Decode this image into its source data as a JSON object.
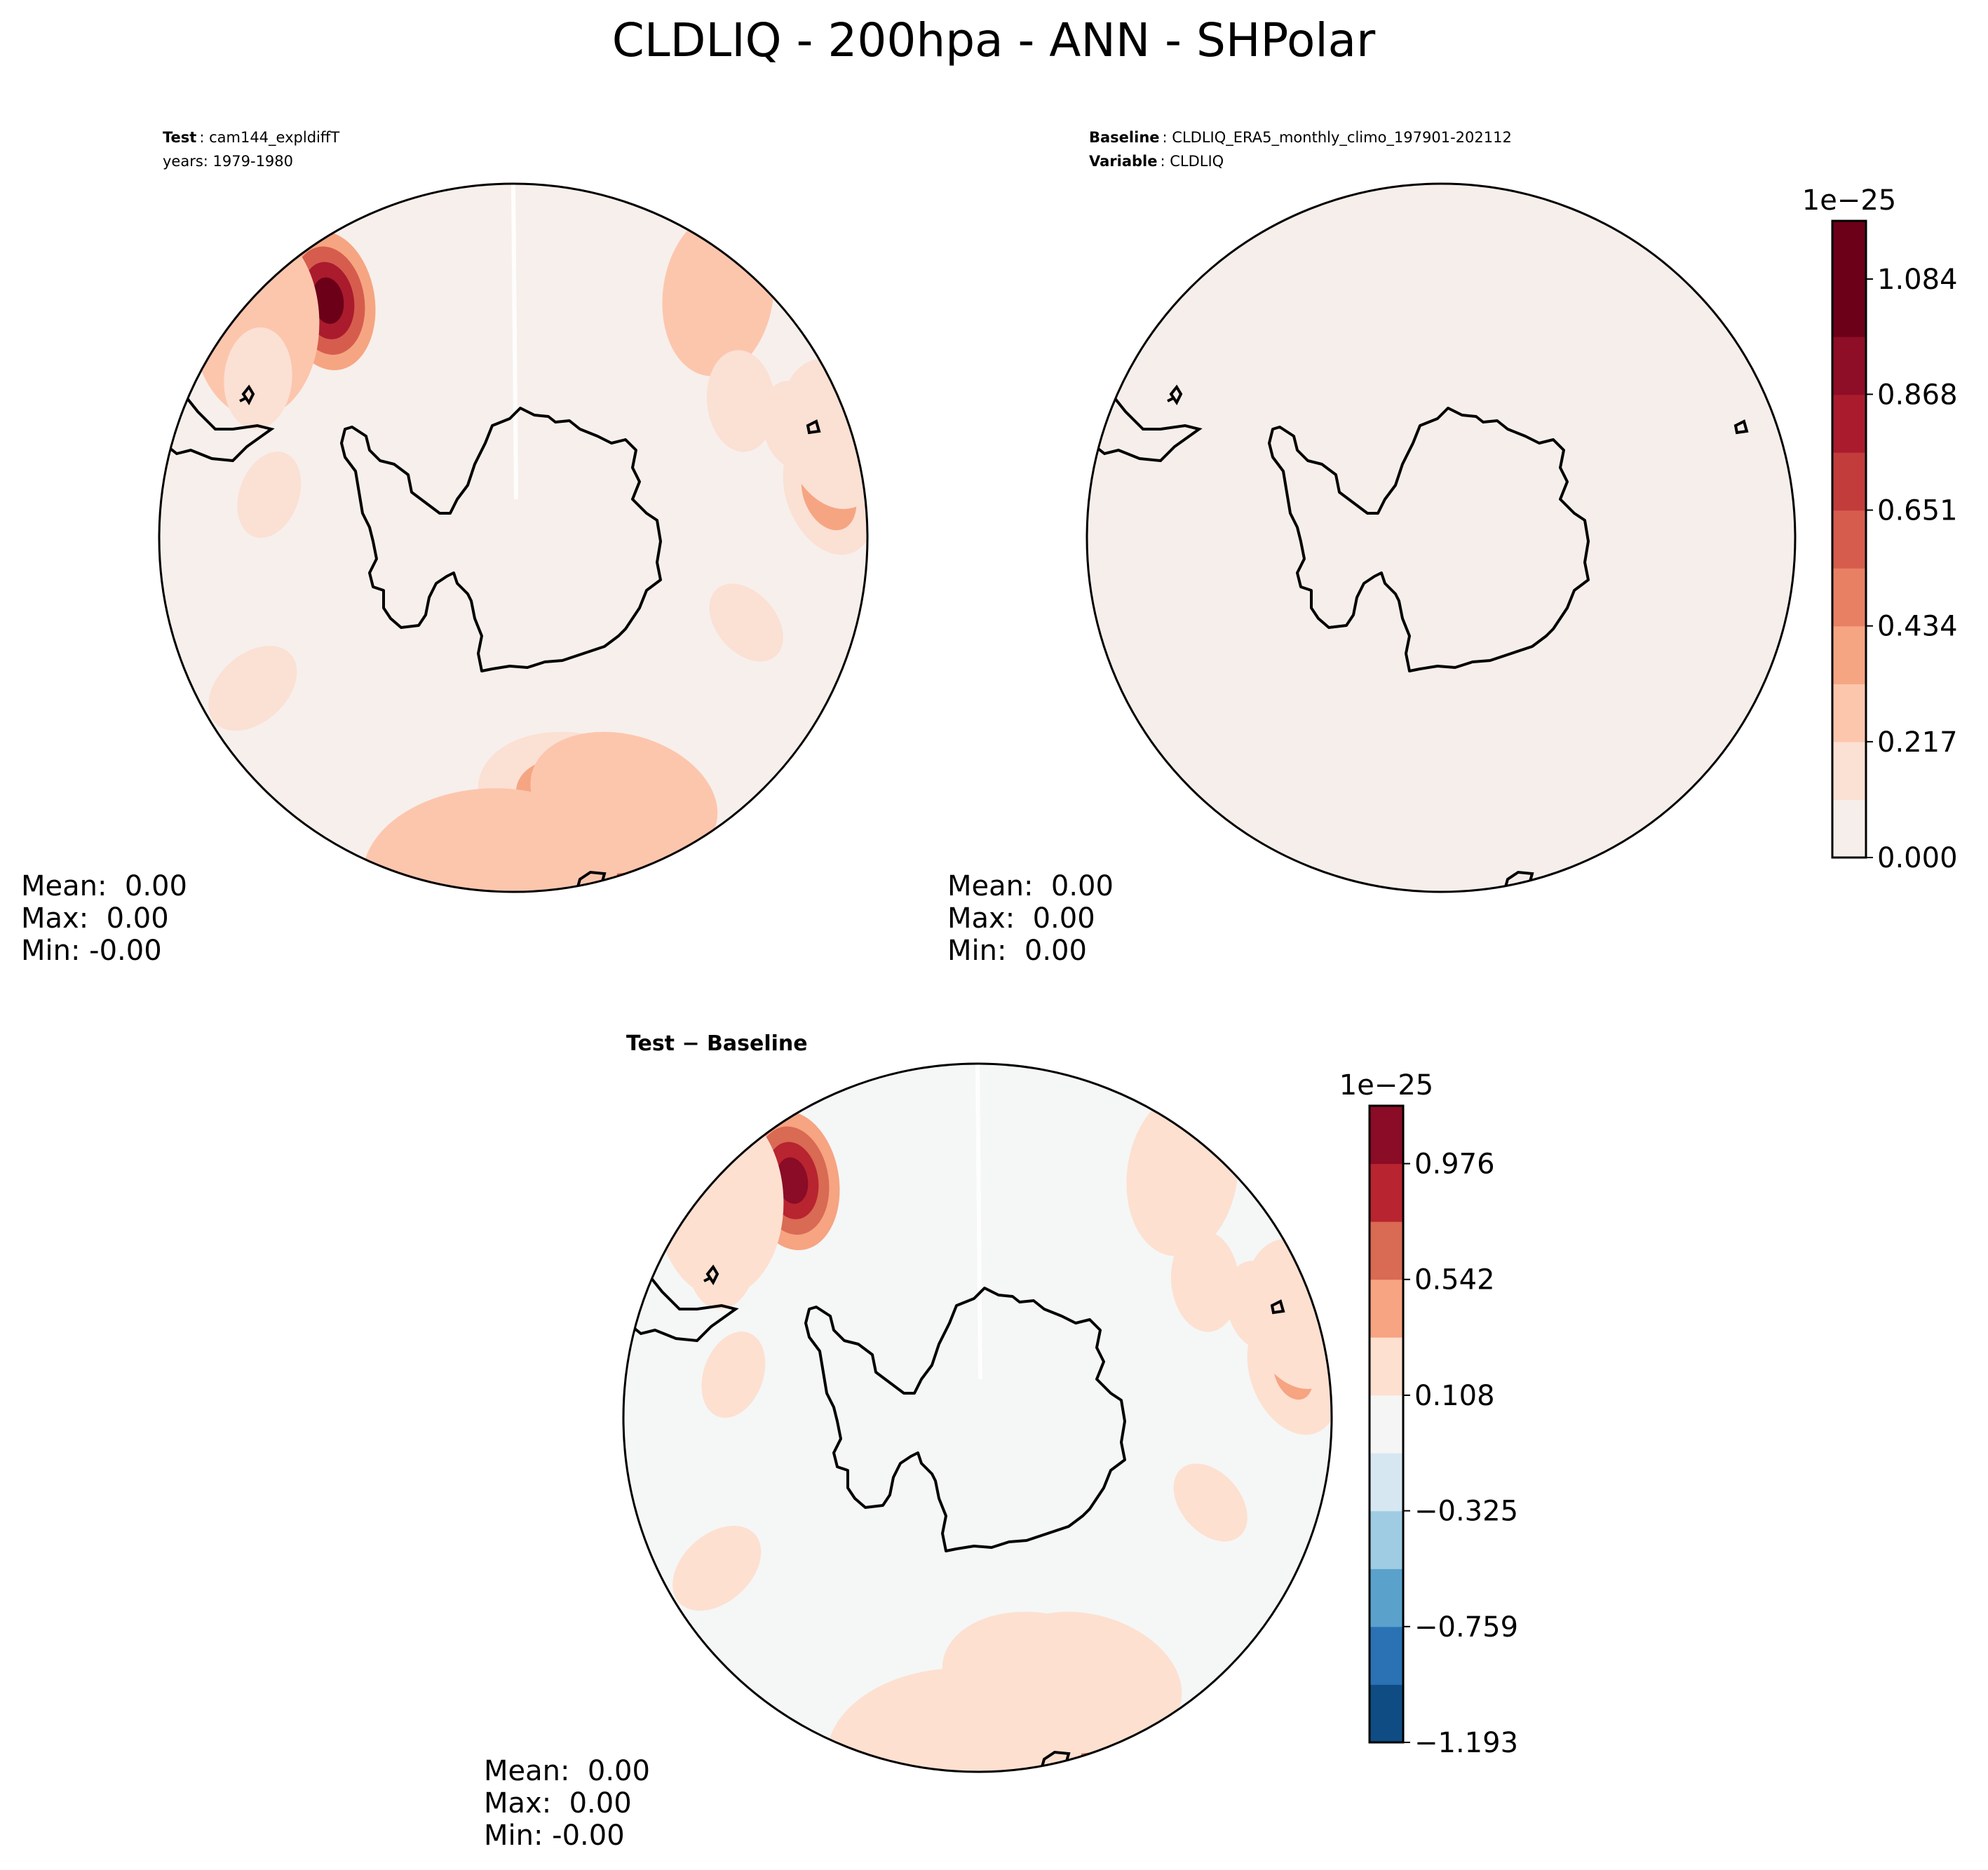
{
  "figure": {
    "title": "CLDLIQ - 200hpa - ANN - SHPolar"
  },
  "colors": {
    "seq": [
      "#f6eeea",
      "#fbe0d4",
      "#fcc6ad",
      "#f6a582",
      "#e88064",
      "#d65d4d",
      "#c23c3c",
      "#aa1b2e",
      "#8e0d27",
      "#6b0018"
    ],
    "div": [
      "#0f4c83",
      "#2a72b3",
      "#5aa2cc",
      "#9fcce2",
      "#d6e7f1",
      "#f5f5f5",
      "#fde0d0",
      "#f6a482",
      "#d96a53",
      "#b8242f",
      "#8a0c26"
    ],
    "ocean_test": "#f7efeb",
    "ocean_base": "#f6eeea",
    "ocean_diff": "#f5f6f6",
    "coast": "#000000"
  },
  "chart_data": [
    {
      "type": "heatmap",
      "panel": "test",
      "header": {
        "line1_bold": "Test",
        "line1_value": "cam144_expldiffT",
        "line2": "years: 1979-1980"
      },
      "stats": {
        "mean": "Mean:  0.00",
        "max": "Max:  0.00",
        "min": "Min: -0.00"
      },
      "hotspots": [
        {
          "lon": -142,
          "lat": -56,
          "level": 9,
          "r": 2.2
        },
        {
          "lon": -130,
          "lat": -52,
          "level": 2,
          "r": 3.0
        },
        {
          "lon": 8,
          "lat": -52,
          "level": 9,
          "r": 2.6
        },
        {
          "lon": 3,
          "lat": -55,
          "level": 7,
          "r": 2.2
        },
        {
          "lon": 1,
          "lat": -56,
          "level": 8,
          "r": 2.0
        },
        {
          "lon": 13,
          "lat": -60,
          "level": 3,
          "r": 3.0
        },
        {
          "lon": 17,
          "lat": -56,
          "level": 4,
          "r": 2.2
        },
        {
          "lon": -4,
          "lat": -52,
          "level": 2,
          "r": 4.0
        },
        {
          "lon": 23,
          "lat": -58,
          "level": 2,
          "r": 3.0
        },
        {
          "lon": 140,
          "lat": -54,
          "level": 2,
          "r": 2.6
        },
        {
          "lon": 98,
          "lat": -54,
          "level": 3,
          "r": 2.0
        },
        {
          "lon": 108,
          "lat": -52,
          "level": 1,
          "r": 2.4
        },
        {
          "lon": 121,
          "lat": -60,
          "level": 1,
          "r": 1.6
        },
        {
          "lon": -122,
          "lat": -56,
          "level": 1,
          "r": 1.6
        },
        {
          "lon": -100,
          "lat": -62,
          "level": 1,
          "r": 1.4
        },
        {
          "lon": -60,
          "lat": -56,
          "level": 1,
          "r": 1.6
        },
        {
          "lon": 70,
          "lat": -62,
          "level": 1,
          "r": 1.4
        },
        {
          "lon": 112,
          "lat": -56,
          "level": 1,
          "r": 1.4
        }
      ]
    },
    {
      "type": "heatmap",
      "panel": "baseline",
      "header": {
        "line1_bold": "Baseline",
        "line1_value": "CLDLIQ_ERA5_monthly_climo_197901-202112",
        "line2_bold": "Variable",
        "line2_value": "CLDLIQ"
      },
      "stats": {
        "mean": "Mean:  0.00",
        "max": "Max:  0.00",
        "min": "Min:  0.00"
      },
      "colorbar": {
        "exponent_label": "1e−25",
        "levels": 11,
        "ticks": [
          "0.000",
          "0.217",
          "0.434",
          "0.651",
          "0.868",
          "1.084"
        ],
        "tick_values": [
          0,
          0.217,
          0.434,
          0.651,
          0.868,
          1.084
        ],
        "range": [
          0,
          1.193
        ]
      },
      "hotspots": []
    },
    {
      "type": "heatmap",
      "panel": "difference",
      "header": {
        "label": "Test − Baseline"
      },
      "stats": {
        "mean": "Mean:  0.00",
        "max": "Max:  0.00",
        "min": "Min: -0.00"
      },
      "colorbar": {
        "exponent_label": "1e−25",
        "levels": 11,
        "ticks": [
          "−1.193",
          "−0.759",
          "−0.325",
          "0.108",
          "0.542",
          "0.976"
        ],
        "tick_values": [
          -1.193,
          -0.759,
          -0.325,
          0.108,
          0.542,
          0.976
        ],
        "range": [
          -1.193,
          1.193
        ]
      },
      "hotspots": [
        {
          "lon": -142,
          "lat": -56,
          "level": 10,
          "r": 2.2
        },
        {
          "lon": -130,
          "lat": -52,
          "level": 6,
          "r": 3.0
        },
        {
          "lon": 8,
          "lat": -52,
          "level": 10,
          "r": 2.6
        },
        {
          "lon": 3,
          "lat": -55,
          "level": 9,
          "r": 2.2
        },
        {
          "lon": 1,
          "lat": -56,
          "level": 9,
          "r": 2.0
        },
        {
          "lon": 13,
          "lat": -60,
          "level": 7,
          "r": 3.0
        },
        {
          "lon": 17,
          "lat": -56,
          "level": 7,
          "r": 2.2
        },
        {
          "lon": -4,
          "lat": -52,
          "level": 6,
          "r": 4.0
        },
        {
          "lon": 23,
          "lat": -58,
          "level": 6,
          "r": 3.0
        },
        {
          "lon": 140,
          "lat": -54,
          "level": 6,
          "r": 2.6
        },
        {
          "lon": 98,
          "lat": -54,
          "level": 7,
          "r": 2.0
        },
        {
          "lon": 108,
          "lat": -52,
          "level": 6,
          "r": 2.4
        },
        {
          "lon": 121,
          "lat": -60,
          "level": 6,
          "r": 1.6
        },
        {
          "lon": -122,
          "lat": -56,
          "level": 6,
          "r": 1.6
        },
        {
          "lon": -100,
          "lat": -62,
          "level": 6,
          "r": 1.4
        },
        {
          "lon": -60,
          "lat": -56,
          "level": 6,
          "r": 1.6
        },
        {
          "lon": 70,
          "lat": -62,
          "level": 6,
          "r": 1.4
        },
        {
          "lon": 112,
          "lat": -56,
          "level": 6,
          "r": 1.4
        }
      ]
    }
  ]
}
